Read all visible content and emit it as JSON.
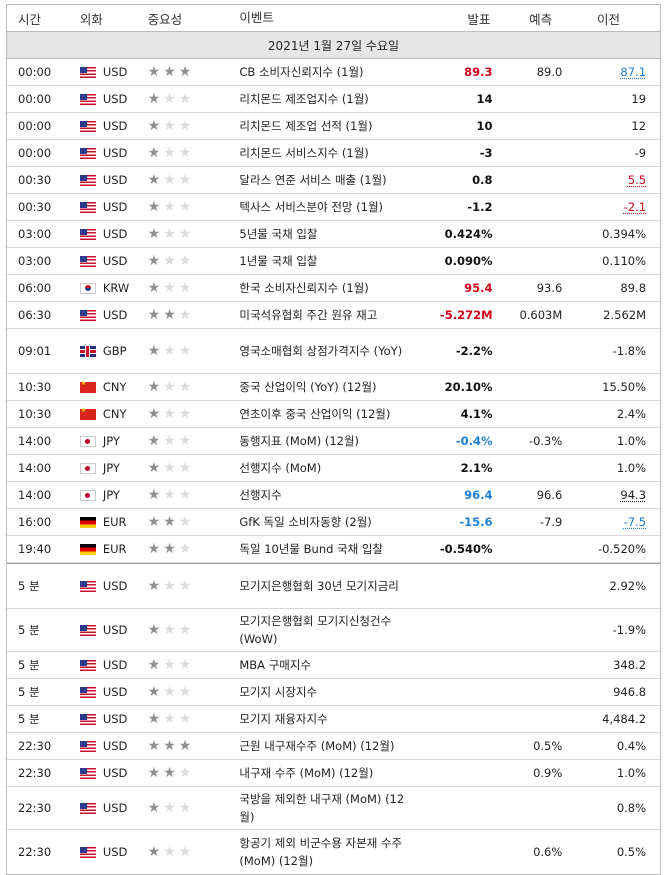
{
  "header": {
    "time": "시간",
    "currency": "외화",
    "importance": "중요성",
    "event": "이벤트",
    "actual": "발표",
    "forecast": "예측",
    "previous": "이전"
  },
  "date_label": "2021년 1월 27일 수요일",
  "colors": {
    "accent_red": "#d0021b",
    "accent_blue": "#1e7fd6",
    "date_bg": "#e6e6e6"
  },
  "rows": [
    {
      "time": "00:00",
      "flag": "us",
      "currency": "USD",
      "stars": 3,
      "event": "CB 소비자신뢰지수 (1월)",
      "actual": "89.3",
      "actual_color": "red",
      "forecast": "89.0",
      "previous": "87.1",
      "prev_color": "blue",
      "prev_ul": true,
      "h": 26
    },
    {
      "time": "00:00",
      "flag": "us",
      "currency": "USD",
      "stars": 1,
      "event": "리치몬드 제조업지수 (1월)",
      "actual": "14",
      "actual_color": "dk",
      "forecast": "",
      "previous": "19",
      "prev_color": "",
      "prev_ul": false,
      "h": 26
    },
    {
      "time": "00:00",
      "flag": "us",
      "currency": "USD",
      "stars": 1,
      "event": "리치몬드 제조업 선적 (1월)",
      "actual": "10",
      "actual_color": "dk",
      "forecast": "",
      "previous": "12",
      "prev_color": "",
      "prev_ul": false,
      "h": 26
    },
    {
      "time": "00:00",
      "flag": "us",
      "currency": "USD",
      "stars": 1,
      "event": "리치몬드 서비스지수 (1월)",
      "actual": "-3",
      "actual_color": "dk",
      "forecast": "",
      "previous": "-9",
      "prev_color": "",
      "prev_ul": false,
      "h": 26
    },
    {
      "time": "00:30",
      "flag": "us",
      "currency": "USD",
      "stars": 1,
      "event": "달라스 연준 서비스 매출 (1월)",
      "actual": "0.8",
      "actual_color": "dk",
      "forecast": "",
      "previous": "5.5",
      "prev_color": "red",
      "prev_ul": true,
      "h": 26
    },
    {
      "time": "00:30",
      "flag": "us",
      "currency": "USD",
      "stars": 1,
      "event": "텍사스 서비스분야 전망 (1월)",
      "actual": "-1.2",
      "actual_color": "dk",
      "forecast": "",
      "previous": "-2.1",
      "prev_color": "red",
      "prev_ul": true,
      "h": 26
    },
    {
      "time": "03:00",
      "flag": "us",
      "currency": "USD",
      "stars": 1,
      "event": "5년물 국채 입찰",
      "actual": "0.424%",
      "actual_color": "dk",
      "forecast": "",
      "previous": "0.394%",
      "prev_color": "",
      "prev_ul": false,
      "h": 26
    },
    {
      "time": "03:00",
      "flag": "us",
      "currency": "USD",
      "stars": 1,
      "event": "1년물 국채 입찰",
      "actual": "0.090%",
      "actual_color": "dk",
      "forecast": "",
      "previous": "0.110%",
      "prev_color": "",
      "prev_ul": false,
      "h": 26
    },
    {
      "time": "06:00",
      "flag": "kr",
      "currency": "KRW",
      "stars": 1,
      "event": "한국 소비자신뢰지수 (1월)",
      "actual": "95.4",
      "actual_color": "red",
      "forecast": "93.6",
      "previous": "89.8",
      "prev_color": "",
      "prev_ul": false,
      "h": 26
    },
    {
      "time": "06:30",
      "flag": "us",
      "currency": "USD",
      "stars": 2,
      "event": "미국석유협회 주간 원유 재고",
      "actual": "-5.272M",
      "actual_color": "red",
      "forecast": "0.603M",
      "previous": "2.562M",
      "prev_color": "",
      "prev_ul": false,
      "h": 26
    },
    {
      "time": "09:01",
      "flag": "gb",
      "currency": "GBP",
      "stars": 1,
      "event": "영국소매협회 상점가격지수 (YoY)",
      "actual": "-2.2%",
      "actual_color": "dk",
      "forecast": "",
      "previous": "-1.8%",
      "prev_color": "",
      "prev_ul": false,
      "h": 44
    },
    {
      "time": "10:30",
      "flag": "cn",
      "currency": "CNY",
      "stars": 1,
      "event": "중국 산업이익 (YoY) (12월)",
      "actual": "20.10%",
      "actual_color": "dk",
      "forecast": "",
      "previous": "15.50%",
      "prev_color": "",
      "prev_ul": false,
      "h": 26
    },
    {
      "time": "10:30",
      "flag": "cn",
      "currency": "CNY",
      "stars": 1,
      "event": "연초이후 중국 산업이익 (12월)",
      "actual": "4.1%",
      "actual_color": "dk",
      "forecast": "",
      "previous": "2.4%",
      "prev_color": "",
      "prev_ul": false,
      "h": 26
    },
    {
      "time": "14:00",
      "flag": "jp",
      "currency": "JPY",
      "stars": 1,
      "event": "동행지표 (MoM) (12월)",
      "actual": "-0.4%",
      "actual_color": "blue",
      "forecast": "-0.3%",
      "previous": "1.0%",
      "prev_color": "",
      "prev_ul": false,
      "h": 26
    },
    {
      "time": "14:00",
      "flag": "jp",
      "currency": "JPY",
      "stars": 1,
      "event": "선행지수 (MoM)",
      "actual": "2.1%",
      "actual_color": "dk",
      "forecast": "",
      "previous": "1.0%",
      "prev_color": "",
      "prev_ul": false,
      "h": 26
    },
    {
      "time": "14:00",
      "flag": "jp",
      "currency": "JPY",
      "stars": 1,
      "event": "선행지수",
      "actual": "96.4",
      "actual_color": "blue",
      "forecast": "96.6",
      "previous": "94.3",
      "prev_color": "",
      "prev_ul": true,
      "h": 26
    },
    {
      "time": "16:00",
      "flag": "de",
      "currency": "EUR",
      "stars": 2,
      "event": "GfK 독일 소비자동향 (2월)",
      "actual": "-15.6",
      "actual_color": "blue",
      "forecast": "-7.9",
      "previous": "-7.5",
      "prev_color": "blue",
      "prev_ul": true,
      "h": 26
    },
    {
      "time": "19:40",
      "flag": "de",
      "currency": "EUR",
      "stars": 2,
      "event": "독일 10년물 Bund 국채 입찰",
      "actual": "-0.540%",
      "actual_color": "dk",
      "forecast": "",
      "previous": "-0.520%",
      "prev_color": "",
      "prev_ul": false,
      "h": 26,
      "last_released": true
    },
    {
      "time": "5 분",
      "flag": "us",
      "currency": "USD",
      "stars": 1,
      "event": "모기지은행협회 30년 모기지금리",
      "actual": "",
      "actual_color": "dk",
      "forecast": "",
      "previous": "2.92%",
      "prev_color": "",
      "prev_ul": false,
      "h": 44
    },
    {
      "time": "5 분",
      "flag": "us",
      "currency": "USD",
      "stars": 1,
      "event": "모기지은행협회 모기지신청건수 (WoW)",
      "actual": "",
      "actual_color": "dk",
      "forecast": "",
      "previous": "-1.9%",
      "prev_color": "",
      "prev_ul": false,
      "h": 42
    },
    {
      "time": "5 분",
      "flag": "us",
      "currency": "USD",
      "stars": 1,
      "event": "MBA 구매지수",
      "actual": "",
      "actual_color": "dk",
      "forecast": "",
      "previous": "348.2",
      "prev_color": "",
      "prev_ul": false,
      "h": 26
    },
    {
      "time": "5 분",
      "flag": "us",
      "currency": "USD",
      "stars": 1,
      "event": "모기지 시장지수",
      "actual": "",
      "actual_color": "dk",
      "forecast": "",
      "previous": "946.8",
      "prev_color": "",
      "prev_ul": false,
      "h": 26
    },
    {
      "time": "5 분",
      "flag": "us",
      "currency": "USD",
      "stars": 1,
      "event": "모기지 재융자지수",
      "actual": "",
      "actual_color": "dk",
      "forecast": "",
      "previous": "4,484.2",
      "prev_color": "",
      "prev_ul": false,
      "h": 26
    },
    {
      "time": "22:30",
      "flag": "us",
      "currency": "USD",
      "stars": 3,
      "event": "근원 내구재수주 (MoM) (12월)",
      "actual": "",
      "actual_color": "dk",
      "forecast": "0.5%",
      "previous": "0.4%",
      "prev_color": "",
      "prev_ul": false,
      "h": 26
    },
    {
      "time": "22:30",
      "flag": "us",
      "currency": "USD",
      "stars": 2,
      "event": "내구재 수주 (MoM) (12월)",
      "actual": "",
      "actual_color": "dk",
      "forecast": "0.9%",
      "previous": "1.0%",
      "prev_color": "",
      "prev_ul": false,
      "h": 26
    },
    {
      "time": "22:30",
      "flag": "us",
      "currency": "USD",
      "stars": 1,
      "event": "국방을 제외한 내구재 (MoM) (12월)",
      "actual": "",
      "actual_color": "dk",
      "forecast": "",
      "previous": "0.8%",
      "prev_color": "",
      "prev_ul": false,
      "h": 42
    },
    {
      "time": "22:30",
      "flag": "us",
      "currency": "USD",
      "stars": 1,
      "event": "항공기 제외 비군수용 자본재 수주 (MoM) (12월)",
      "actual": "",
      "actual_color": "dk",
      "forecast": "0.6%",
      "previous": "0.5%",
      "prev_color": "",
      "prev_ul": false,
      "h": 44
    }
  ]
}
